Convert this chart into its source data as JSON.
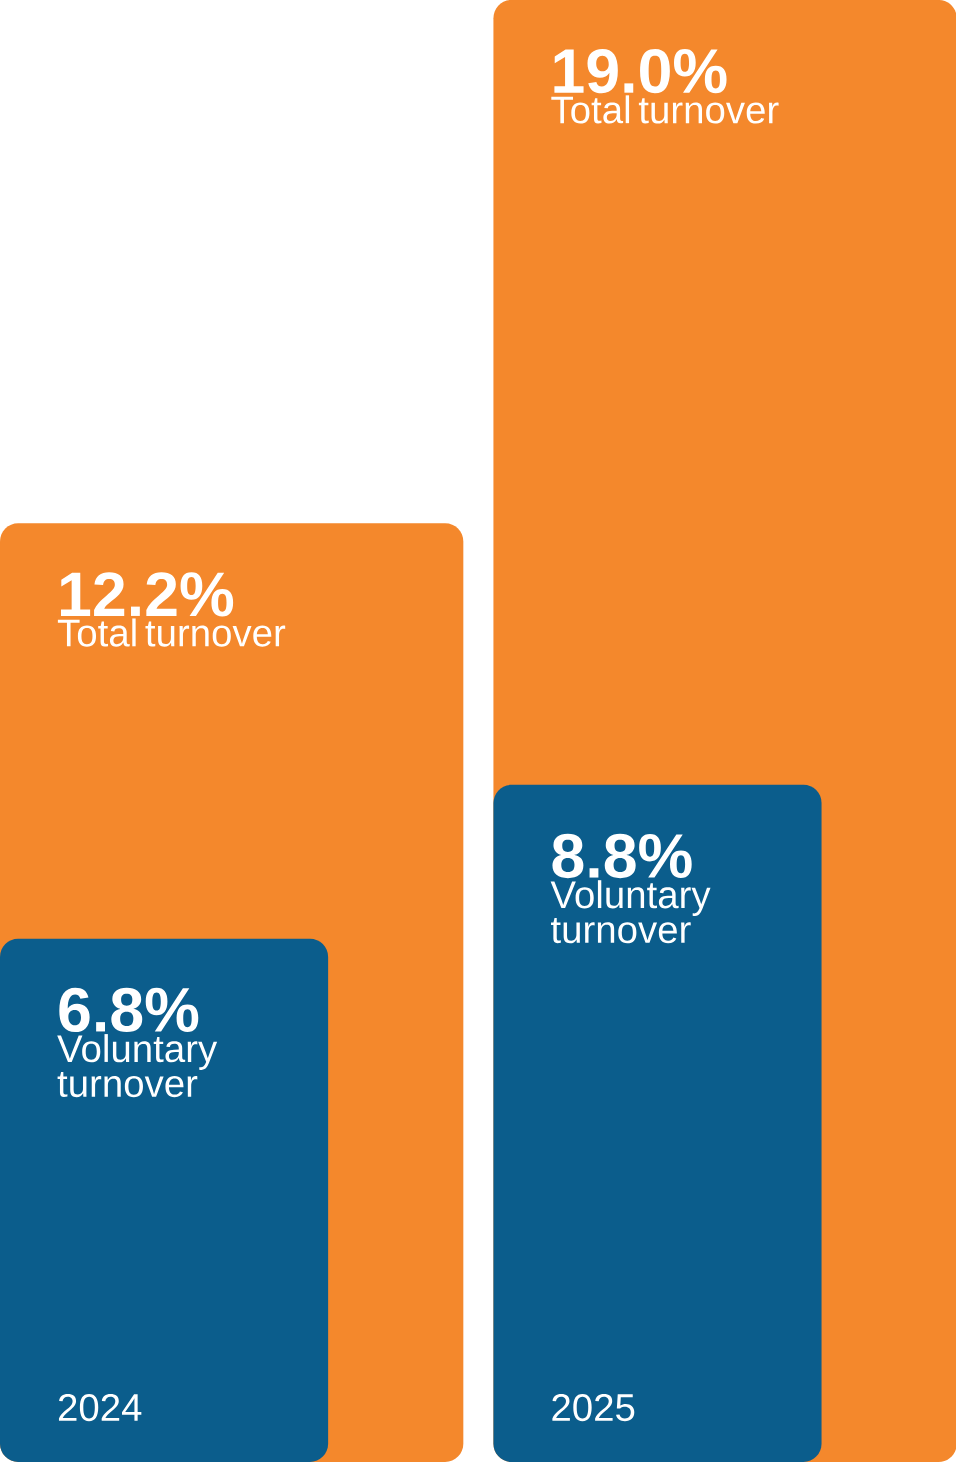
{
  "chart_data": {
    "type": "bar",
    "categories": [
      "2024",
      "2025"
    ],
    "series": [
      {
        "name": "Total turnover",
        "color": "#f4882c",
        "values": [
          12.2,
          19.0
        ],
        "value_labels": [
          "12.2%",
          "19.0%"
        ]
      },
      {
        "name": "Voluntary turnover",
        "color": "#0b5d8c",
        "values": [
          6.8,
          8.8
        ],
        "value_labels": [
          "6.8%",
          "8.8%"
        ]
      }
    ]
  }
}
